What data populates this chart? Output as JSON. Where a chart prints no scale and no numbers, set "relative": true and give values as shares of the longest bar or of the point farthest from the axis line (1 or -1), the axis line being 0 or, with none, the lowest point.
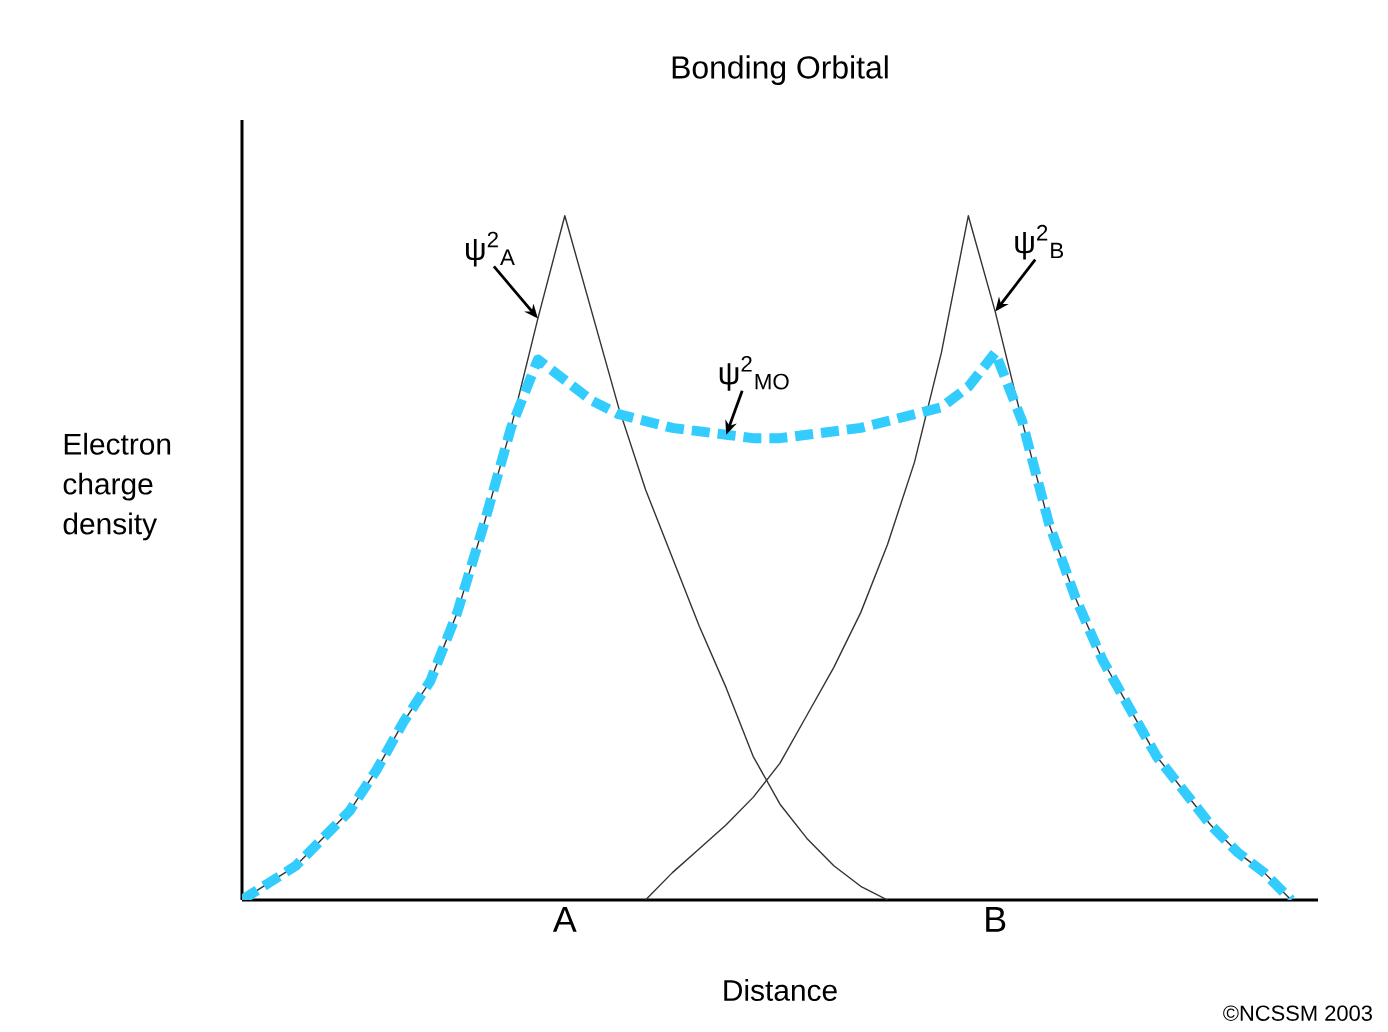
{
  "chart_data": {
    "type": "line",
    "title": "Bonding Orbital",
    "xlabel": "Distance",
    "ylabel": "Electron charge density",
    "relative": true,
    "tick_labels": "x",
    "categories": [
      null,
      null,
      null,
      null,
      null,
      null,
      null,
      null,
      null,
      null,
      null,
      null,
      "A",
      null,
      null,
      null,
      null,
      null,
      null,
      null,
      null,
      null,
      null,
      null,
      null,
      null,
      null,
      null,
      "B",
      null,
      null,
      null,
      null,
      null,
      null,
      null,
      null,
      null,
      null,
      null,
      null
    ],
    "series": [
      {
        "name": "ψ$^{2}$$_{A}$",
        "color": "#333333",
        "line_style": "solid",
        "values": [
          0,
          0.025,
          0.05,
          0.09,
          0.13,
          0.19,
          0.26,
          0.32,
          0.42,
          0.55,
          0.69,
          0.85,
          1,
          0.86,
          0.72,
          0.6,
          0.5,
          0.4,
          0.31,
          0.21,
          0.14,
          0.09,
          0.05,
          0.02,
          0,
          null,
          null,
          null,
          null,
          null,
          null,
          null,
          null,
          null,
          null,
          null,
          null,
          null,
          null,
          null,
          null
        ]
      },
      {
        "name": "ψ$^{2}$$_{B}$",
        "color": "#333333",
        "line_style": "solid",
        "values": [
          null,
          null,
          null,
          null,
          null,
          null,
          null,
          null,
          null,
          null,
          null,
          null,
          null,
          null,
          null,
          0,
          0.04,
          0.075,
          0.11,
          0.15,
          0.2,
          0.27,
          0.34,
          0.42,
          0.52,
          0.64,
          0.8,
          1,
          0.86,
          0.7,
          0.55,
          0.44,
          0.35,
          0.28,
          0.21,
          0.16,
          0.11,
          0.07,
          0.04,
          0,
          null
        ]
      },
      {
        "name": "ψ$^{2}$$_{MO}$",
        "color": "#33ccff",
        "line_style": "dashed",
        "values": [
          0,
          0.025,
          0.05,
          0.09,
          0.13,
          0.19,
          0.26,
          0.32,
          0.42,
          0.55,
          0.69,
          0.79,
          0.76,
          0.73,
          0.71,
          0.7,
          0.69,
          0.685,
          0.68,
          0.675,
          0.675,
          0.68,
          0.685,
          0.69,
          0.7,
          0.71,
          0.72,
          0.75,
          0.8,
          0.7,
          0.55,
          0.44,
          0.35,
          0.28,
          0.21,
          0.16,
          0.11,
          0.07,
          0.04,
          0,
          null
        ]
      }
    ],
    "annotations": [
      "©NCSSM 2003"
    ]
  }
}
